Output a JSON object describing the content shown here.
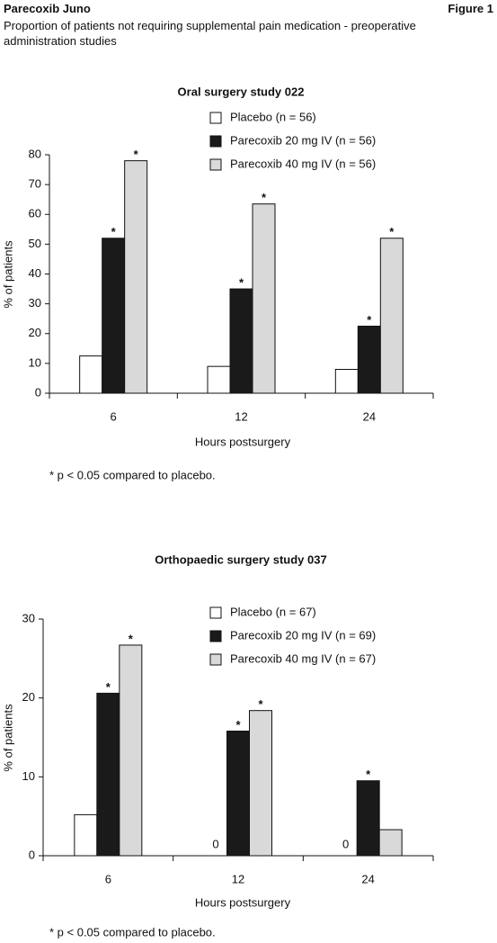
{
  "header": {
    "title": "Parecoxib Juno",
    "figure": "Figure 1",
    "subtitle": "Proportion of patients not requiring supplemental pain medication -  preoperative administration studies"
  },
  "chart_data": [
    {
      "type": "bar",
      "title": "Oral surgery study 022",
      "x_label": "Hours postsurgery",
      "y_label": "% of patients",
      "note": "* p < 0.05 compared to placebo.",
      "categories": [
        "6",
        "12",
        "24"
      ],
      "series": [
        {
          "name": "Placebo (n = 56)",
          "color": "#ffffff",
          "values": [
            12.5,
            9,
            8
          ],
          "annotations": [
            null,
            null,
            null
          ]
        },
        {
          "name": "Parecoxib 20 mg IV (n = 56)",
          "color": "#1a1a1a",
          "values": [
            52,
            35,
            22.5
          ],
          "annotations": [
            "*",
            "*",
            "*"
          ]
        },
        {
          "name": "Parecoxib 40 mg IV (n = 56)",
          "color": "#d9d9d9",
          "values": [
            78,
            63.5,
            52
          ],
          "annotations": [
            "*",
            "*",
            "*"
          ]
        }
      ],
      "ylim": [
        0,
        80
      ],
      "yticks": [
        0,
        10,
        20,
        30,
        40,
        50,
        60,
        70,
        80
      ],
      "grid": false,
      "legend": "top"
    },
    {
      "type": "bar",
      "title": "Orthopaedic surgery study 037",
      "x_label": "Hours postsurgery",
      "y_label": "% of patients",
      "note": "* p < 0.05 compared to placebo.",
      "categories": [
        "6",
        "12",
        "24"
      ],
      "series": [
        {
          "name": "Placebo (n = 67)",
          "color": "#ffffff",
          "values": [
            5.2,
            0,
            0
          ],
          "value_labels": [
            null,
            "0",
            "0"
          ],
          "annotations": [
            null,
            null,
            null
          ]
        },
        {
          "name": "Parecoxib 20 mg IV (n = 69)",
          "color": "#1a1a1a",
          "values": [
            20.6,
            15.8,
            9.5
          ],
          "annotations": [
            "*",
            "*",
            "*"
          ]
        },
        {
          "name": "Parecoxib 40 mg IV (n = 67)",
          "color": "#d9d9d9",
          "values": [
            26.7,
            18.4,
            3.3
          ],
          "annotations": [
            "*",
            "*",
            null
          ]
        }
      ],
      "ylim": [
        0,
        30
      ],
      "yticks": [
        0,
        10,
        20,
        30
      ],
      "grid": false,
      "legend": "top"
    }
  ]
}
